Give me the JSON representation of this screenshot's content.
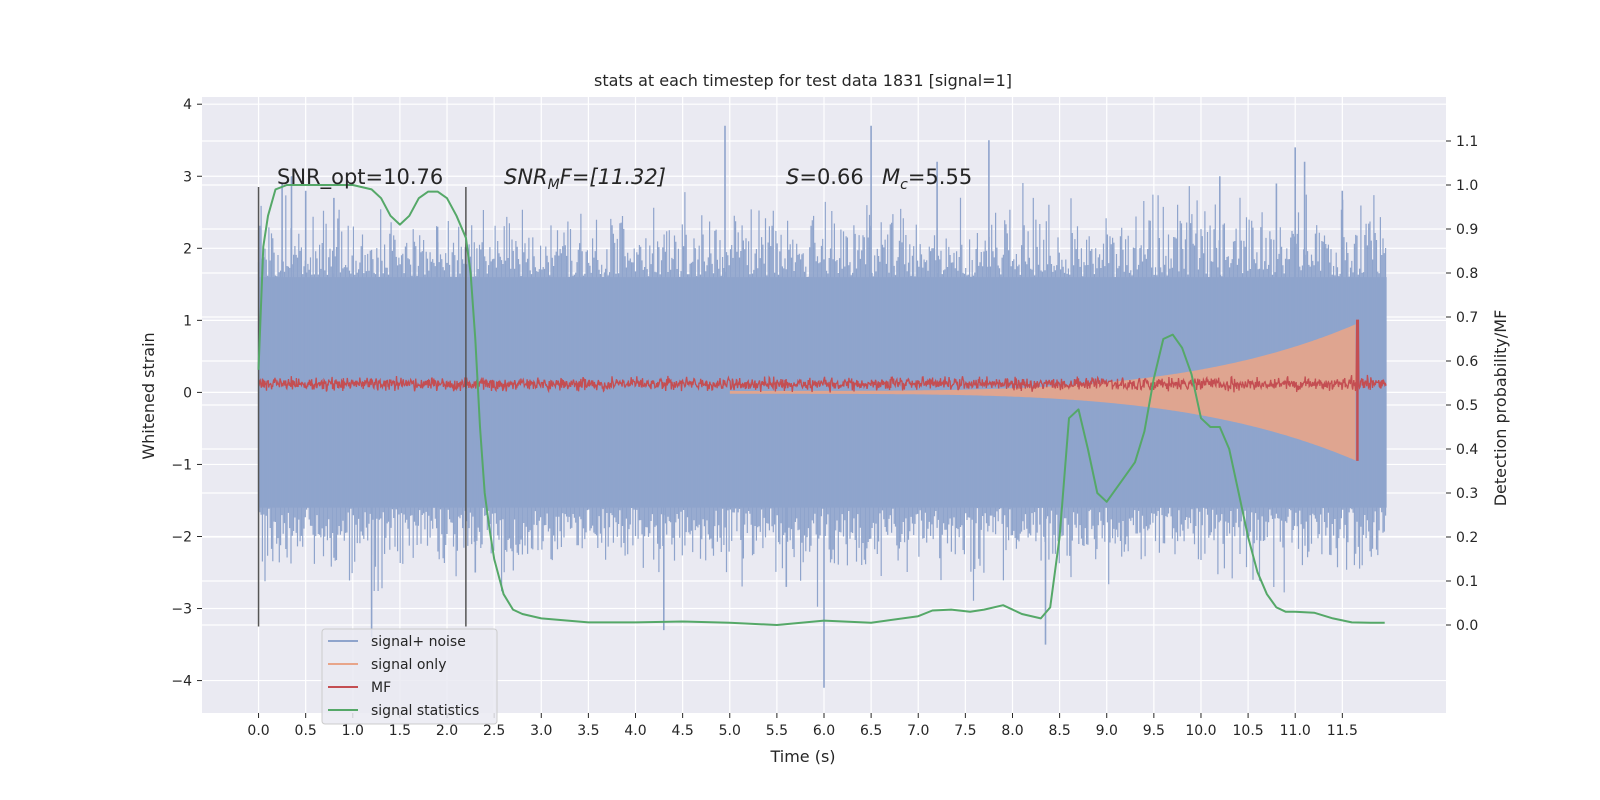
{
  "chart_data": {
    "type": "line",
    "title": "stats at each timestep for test data 1831 [signal=1]",
    "xlabel": "Time (s)",
    "ylabel": "Whitened strain",
    "y2label": "Detection probability/MF",
    "xlim": [
      -0.6,
      12.6
    ],
    "ylim": [
      -4.45,
      4.1
    ],
    "y2lim": [
      -0.2,
      1.2
    ],
    "xticks": [
      0.0,
      0.5,
      1.0,
      1.5,
      2.0,
      2.5,
      3.0,
      3.5,
      4.0,
      4.5,
      5.0,
      5.5,
      6.0,
      6.5,
      7.0,
      7.5,
      8.0,
      8.5,
      9.0,
      9.5,
      10.0,
      10.5,
      11.0,
      11.5
    ],
    "xtick_labels": [
      "0.0",
      "0.5",
      "1.0",
      "1.5",
      "2.0",
      "2.5",
      "3.0",
      "3.5",
      "4.0",
      "4.5",
      "5.0",
      "5.5",
      "6.0",
      "6.5",
      "7.0",
      "7.5",
      "8.0",
      "8.5",
      "9.0",
      "9.5",
      "10.0",
      "10.5",
      "11.0",
      "11.5"
    ],
    "yticks": [
      -4,
      -3,
      -2,
      -1,
      0,
      1,
      2,
      3,
      4
    ],
    "ytick_labels": [
      "−4",
      "−3",
      "−2",
      "−1",
      "0",
      "1",
      "2",
      "3",
      "4"
    ],
    "y2ticks": [
      0.0,
      0.1,
      0.2,
      0.3,
      0.4,
      0.5,
      0.6,
      0.7,
      0.8,
      0.9,
      1.0,
      1.1
    ],
    "y2tick_labels": [
      "0.0",
      "0.1",
      "0.2",
      "0.3",
      "0.4",
      "0.5",
      "0.6",
      "0.7",
      "0.8",
      "0.9",
      "1.0",
      "1.1"
    ],
    "grid": true,
    "legend_position": "lower-left",
    "annotations": {
      "snr_opt": "SNR_opt=10.76",
      "snr_mf_sym": "SNR",
      "snr_mf_sub": "M",
      "snr_mf_rest": "F=[11.32]",
      "s_sym": "S",
      "s_rest": "=0.66",
      "mc_sym": "M",
      "mc_sub": "c",
      "mc_rest": "=5.55"
    },
    "vertical_markers": [
      0.0,
      2.2
    ],
    "series": [
      {
        "name": "signal+ noise",
        "color": "#8fa4cc",
        "kind": "noise",
        "x_range": [
          0.0,
          11.97
        ],
        "envelope": 1.6,
        "spikes": [
          [
            0.25,
            2.9
          ],
          [
            0.35,
            3.0
          ],
          [
            0.5,
            2.8
          ],
          [
            0.8,
            2.7
          ],
          [
            1.2,
            -3.4
          ],
          [
            1.9,
            2.3
          ],
          [
            2.3,
            -2.5
          ],
          [
            4.3,
            -3.3
          ],
          [
            4.95,
            3.7
          ],
          [
            5.6,
            -2.7
          ],
          [
            6.0,
            -4.1
          ],
          [
            6.5,
            3.7
          ],
          [
            7.2,
            3.2
          ],
          [
            7.75,
            3.5
          ],
          [
            8.35,
            -3.5
          ],
          [
            10.2,
            3.0
          ],
          [
            10.8,
            2.9
          ],
          [
            11.0,
            3.4
          ],
          [
            11.1,
            3.2
          ],
          [
            11.5,
            2.8
          ]
        ]
      },
      {
        "name": "signal only",
        "color": "#e8a58a",
        "kind": "chirp",
        "x_range": [
          5.0,
          11.65
        ],
        "amplitude_at_end": 0.95
      },
      {
        "name": "MF",
        "color": "#c44e52",
        "kind": "mf",
        "level": 0.12,
        "spread": 0.09,
        "peak": [
          11.66,
          1.0
        ]
      },
      {
        "name": "signal statistics",
        "color": "#55a868",
        "kind": "line",
        "axis": "right",
        "x": [
          0.0,
          0.05,
          0.1,
          0.18,
          0.3,
          0.5,
          0.8,
          1.0,
          1.2,
          1.3,
          1.4,
          1.5,
          1.6,
          1.7,
          1.8,
          1.9,
          2.0,
          2.1,
          2.2,
          2.25,
          2.3,
          2.35,
          2.4,
          2.45,
          2.5,
          2.55,
          2.6,
          2.7,
          2.8,
          3.0,
          3.5,
          4.0,
          4.5,
          5.0,
          5.5,
          6.0,
          6.5,
          7.0,
          7.15,
          7.35,
          7.55,
          7.7,
          7.9,
          8.1,
          8.3,
          8.4,
          8.5,
          8.6,
          8.7,
          8.8,
          8.9,
          9.0,
          9.1,
          9.2,
          9.3,
          9.4,
          9.5,
          9.6,
          9.7,
          9.8,
          9.9,
          10.0,
          10.1,
          10.2,
          10.3,
          10.4,
          10.5,
          10.6,
          10.7,
          10.8,
          10.9,
          11.0,
          11.2,
          11.4,
          11.6,
          11.8,
          11.95
        ],
        "y": [
          0.58,
          0.86,
          0.93,
          0.99,
          1.0,
          1.0,
          1.0,
          1.0,
          0.99,
          0.97,
          0.93,
          0.91,
          0.93,
          0.97,
          0.985,
          0.985,
          0.97,
          0.93,
          0.88,
          0.8,
          0.65,
          0.45,
          0.3,
          0.22,
          0.15,
          0.11,
          0.07,
          0.035,
          0.025,
          0.015,
          0.006,
          0.006,
          0.008,
          0.005,
          0.0,
          0.01,
          0.005,
          0.02,
          0.033,
          0.035,
          0.03,
          0.035,
          0.045,
          0.025,
          0.015,
          0.04,
          0.2,
          0.47,
          0.49,
          0.4,
          0.3,
          0.28,
          0.31,
          0.34,
          0.37,
          0.44,
          0.56,
          0.65,
          0.66,
          0.63,
          0.57,
          0.47,
          0.45,
          0.45,
          0.4,
          0.3,
          0.2,
          0.12,
          0.07,
          0.04,
          0.03,
          0.03,
          0.028,
          0.015,
          0.006,
          0.005,
          0.005
        ]
      }
    ]
  }
}
